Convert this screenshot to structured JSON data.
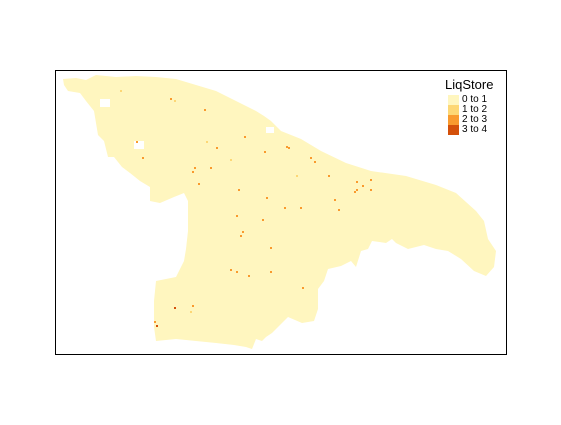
{
  "map": {
    "legend": {
      "title": "LiqStore",
      "items": [
        {
          "label": "0 to 1",
          "color": "#fff6bf"
        },
        {
          "label": "1 to 2",
          "color": "#fdd775"
        },
        {
          "label": "2 to 3",
          "color": "#f99a2e"
        },
        {
          "label": "3 to 4",
          "color": "#d4500a"
        }
      ]
    }
  }
}
